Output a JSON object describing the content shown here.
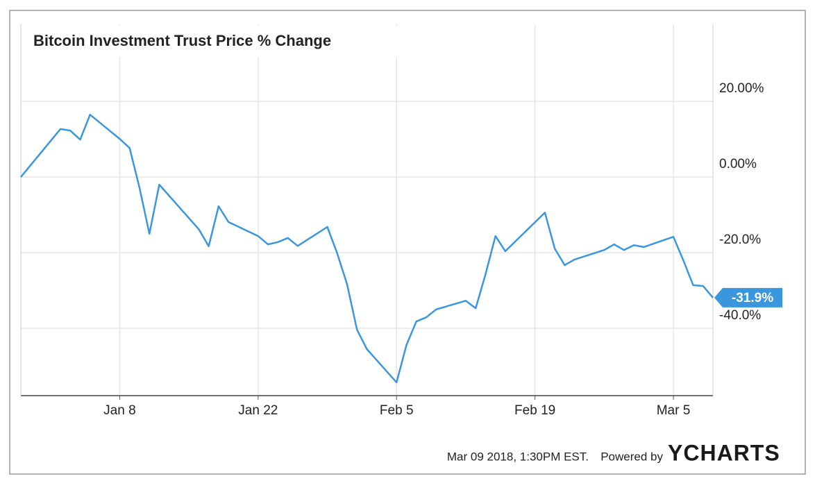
{
  "chart_data": {
    "type": "line",
    "title": "Bitcoin Investment Trust Price % Change",
    "x": [
      "2017-12-29",
      "2018-01-02",
      "2018-01-03",
      "2018-01-04",
      "2018-01-05",
      "2018-01-08",
      "2018-01-09",
      "2018-01-10",
      "2018-01-11",
      "2018-01-12",
      "2018-01-16",
      "2018-01-17",
      "2018-01-18",
      "2018-01-19",
      "2018-01-22",
      "2018-01-23",
      "2018-01-24",
      "2018-01-25",
      "2018-01-26",
      "2018-01-29",
      "2018-01-30",
      "2018-01-31",
      "2018-02-01",
      "2018-02-02",
      "2018-02-05",
      "2018-02-06",
      "2018-02-07",
      "2018-02-08",
      "2018-02-09",
      "2018-02-12",
      "2018-02-13",
      "2018-02-14",
      "2018-02-15",
      "2018-02-16",
      "2018-02-20",
      "2018-02-21",
      "2018-02-22",
      "2018-02-23",
      "2018-02-26",
      "2018-02-27",
      "2018-02-28",
      "2018-03-01",
      "2018-03-02",
      "2018-03-05",
      "2018-03-06",
      "2018-03-07",
      "2018-03-08",
      "2018-03-09"
    ],
    "series": [
      {
        "name": "Bitcoin Investment Trust",
        "color": "#3a96dd",
        "values": [
          0,
          12.7,
          12.3,
          9.9,
          16.5,
          10.1,
          7.7,
          -2.8,
          -15.0,
          -2.0,
          -13.8,
          -18.3,
          -7.7,
          -11.9,
          -15.6,
          -17.8,
          -17.2,
          -16.1,
          -18.2,
          -13.2,
          -20.2,
          -28.4,
          -40.4,
          -45.5,
          -54.3,
          -44.4,
          -38.2,
          -37.1,
          -35.0,
          -32.7,
          -34.7,
          -25.7,
          -15.6,
          -19.6,
          -9.4,
          -18.9,
          -23.3,
          -21.8,
          -19.3,
          -17.8,
          -19.3,
          -18.0,
          -18.5,
          -15.8,
          -22.0,
          -28.6,
          -28.8,
          -31.9
        ],
        "value_labels": [
          null,
          null,
          null,
          null,
          null,
          null,
          null,
          null,
          null,
          null,
          null,
          null,
          null,
          null,
          null,
          null,
          null,
          null,
          null,
          null,
          null,
          null,
          null,
          null,
          null,
          null,
          null,
          null,
          null,
          null,
          null,
          null,
          null,
          null,
          null,
          null,
          null,
          null,
          null,
          null,
          null,
          null,
          null,
          null,
          null,
          null,
          null,
          "-31.9%"
        ]
      }
    ],
    "xlim": [
      "2017-12-29",
      "2018-03-09"
    ],
    "xticks": [
      {
        "value": "2018-01-08",
        "label": "Jan 8"
      },
      {
        "value": "2018-01-22",
        "label": "Jan 22"
      },
      {
        "value": "2018-02-05",
        "label": "Feb 5"
      },
      {
        "value": "2018-02-19",
        "label": "Feb 19"
      },
      {
        "value": "2018-03-05",
        "label": "Mar 5"
      }
    ],
    "ylim": [
      -57.8,
      40.4
    ],
    "yticks": [
      {
        "value": 20,
        "label": "20.00%"
      },
      {
        "value": 0,
        "label": "0.00%"
      },
      {
        "value": -20,
        "label": "-20.0%"
      },
      {
        "value": -40,
        "label": "-40.0%"
      }
    ],
    "grid": true,
    "source": "Mar 09 2018, 1:30PM EST.",
    "credit": "Powered by",
    "brand": "YCHARTS"
  }
}
